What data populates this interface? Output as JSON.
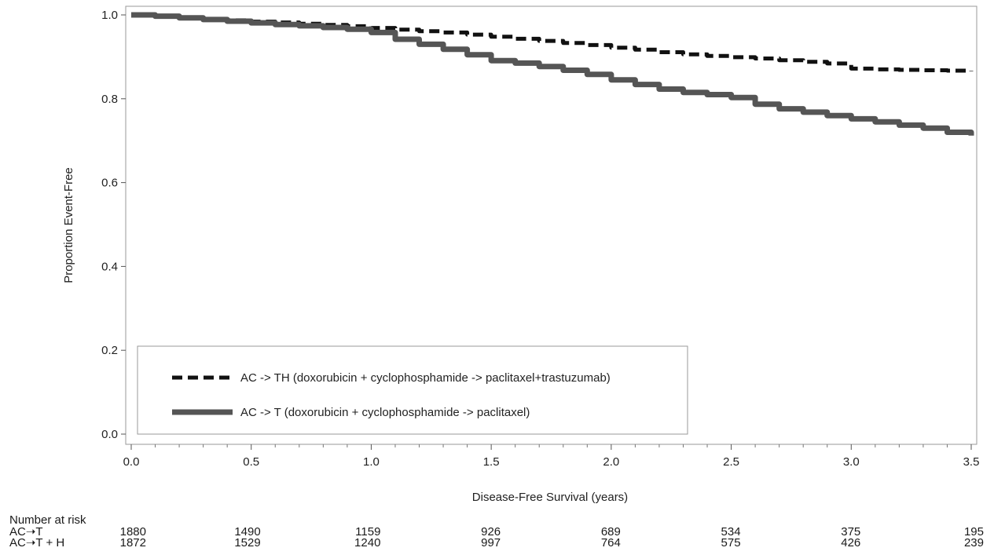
{
  "chart_data": {
    "type": "line",
    "title": "",
    "xlabel": "Disease-Free Survival (years)",
    "ylabel": "Proportion Event-Free",
    "xlim": [
      0,
      3.5
    ],
    "ylim": [
      0,
      1.0
    ],
    "x_ticks": [
      "0.0",
      "0.5",
      "1.0",
      "1.5",
      "2.0",
      "2.5",
      "3.0",
      "3.5"
    ],
    "y_ticks": [
      "0.0",
      "0.2",
      "0.4",
      "0.6",
      "0.8",
      "1.0"
    ],
    "grid": false,
    "legend_position": "lower-left",
    "series": [
      {
        "name": "AC -> TH (doxorubicin + cyclophosphamide -> paclitaxel+trastuzumab)",
        "style": "dashed",
        "color": "#111111",
        "x": [
          0,
          0.1,
          0.2,
          0.3,
          0.4,
          0.5,
          0.6,
          0.7,
          0.8,
          0.9,
          1.0,
          1.1,
          1.2,
          1.3,
          1.4,
          1.5,
          1.6,
          1.7,
          1.8,
          1.9,
          2.0,
          2.1,
          2.2,
          2.3,
          2.4,
          2.5,
          2.6,
          2.7,
          2.8,
          2.9,
          3.0,
          3.1,
          3.2,
          3.3,
          3.4,
          3.5
        ],
        "y": [
          1.0,
          0.997,
          0.994,
          0.99,
          0.987,
          0.984,
          0.982,
          0.979,
          0.976,
          0.973,
          0.969,
          0.965,
          0.961,
          0.958,
          0.953,
          0.948,
          0.943,
          0.938,
          0.933,
          0.928,
          0.922,
          0.917,
          0.911,
          0.906,
          0.902,
          0.899,
          0.896,
          0.892,
          0.888,
          0.884,
          0.872,
          0.87,
          0.869,
          0.868,
          0.867,
          0.866
        ]
      },
      {
        "name": "AC -> T (doxorubicin + cyclophosphamide -> paclitaxel)",
        "style": "solid",
        "color": "#555555",
        "x": [
          0,
          0.1,
          0.2,
          0.3,
          0.4,
          0.5,
          0.6,
          0.7,
          0.8,
          0.9,
          1.0,
          1.1,
          1.2,
          1.3,
          1.4,
          1.5,
          1.6,
          1.7,
          1.8,
          1.9,
          2.0,
          2.1,
          2.2,
          2.3,
          2.4,
          2.5,
          2.6,
          2.7,
          2.8,
          2.9,
          3.0,
          3.1,
          3.2,
          3.3,
          3.4,
          3.5
        ],
        "y": [
          1.0,
          0.997,
          0.993,
          0.989,
          0.985,
          0.981,
          0.977,
          0.974,
          0.97,
          0.966,
          0.958,
          0.942,
          0.93,
          0.918,
          0.905,
          0.891,
          0.885,
          0.877,
          0.868,
          0.858,
          0.845,
          0.834,
          0.823,
          0.815,
          0.81,
          0.803,
          0.787,
          0.776,
          0.768,
          0.76,
          0.752,
          0.745,
          0.737,
          0.73,
          0.72,
          0.712
        ]
      }
    ]
  },
  "risk_table": {
    "title": "Number at risk",
    "x": [
      0,
      0.5,
      1.0,
      1.5,
      2.0,
      2.5,
      3.0,
      3.5
    ],
    "rows": [
      {
        "label": "AC➝T",
        "values": [
          "1880",
          "1490",
          "1159",
          "926",
          "689",
          "534",
          "375",
          "195"
        ]
      },
      {
        "label": "AC➝T + H",
        "values": [
          "1872",
          "1529",
          "1240",
          "997",
          "764",
          "575",
          "426",
          "239"
        ]
      }
    ]
  }
}
